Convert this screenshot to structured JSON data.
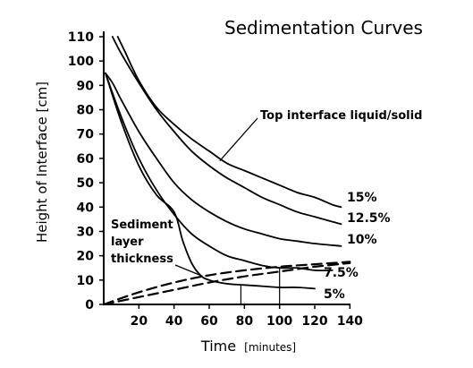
{
  "chart_data": {
    "type": "line",
    "title": "Sedimentation Curves",
    "xlabel": "Time",
    "xlabel_unit": "[minutes]",
    "ylabel": "Height of Interface [cm]",
    "xlim": [
      0,
      140
    ],
    "ylim": [
      0,
      110
    ],
    "x_ticks": [
      20,
      40,
      60,
      80,
      100,
      120,
      140
    ],
    "y_ticks": [
      0,
      10,
      20,
      30,
      40,
      50,
      60,
      70,
      80,
      90,
      100,
      110
    ],
    "grid": false,
    "legend": "none",
    "series": [
      {
        "name": "15%",
        "style": "solid",
        "x": [
          8,
          12,
          20,
          30,
          40,
          50,
          60,
          70,
          80,
          90,
          100,
          110,
          120,
          130,
          135
        ],
        "y": [
          110,
          104,
          92,
          81,
          74,
          68,
          63,
          58,
          55,
          52,
          49,
          46,
          44,
          41,
          40
        ]
      },
      {
        "name": "12.5%",
        "style": "solid",
        "x": [
          5,
          10,
          20,
          30,
          40,
          50,
          60,
          70,
          80,
          90,
          100,
          110,
          120,
          130,
          135
        ],
        "y": [
          110,
          103,
          91,
          80,
          71,
          63,
          57,
          52,
          48,
          44,
          41,
          38,
          36,
          34,
          33
        ]
      },
      {
        "name": "10%",
        "style": "solid",
        "x": [
          1,
          5,
          10,
          20,
          30,
          40,
          50,
          60,
          70,
          80,
          90,
          100,
          110,
          120,
          135
        ],
        "y": [
          95,
          91,
          84,
          71,
          60,
          50,
          43,
          38,
          34,
          31,
          29,
          27,
          26,
          25,
          24
        ]
      },
      {
        "name": "7.5%",
        "style": "solid",
        "x": [
          1,
          10,
          20,
          30,
          40,
          50,
          60,
          70,
          80,
          90,
          100,
          110,
          120,
          130
        ],
        "y": [
          95,
          77,
          60,
          47,
          37,
          29,
          24,
          20,
          18,
          16,
          15,
          15,
          14,
          14
        ]
      },
      {
        "name": "5%",
        "style": "solid",
        "x": [
          1,
          10,
          20,
          30,
          40,
          45,
          50,
          55,
          60,
          70,
          80,
          90,
          100,
          110,
          120
        ],
        "y": [
          95,
          75,
          57,
          45,
          38,
          26,
          17,
          12,
          10,
          8.5,
          8,
          7.5,
          7,
          7,
          6.5
        ]
      },
      {
        "name": "Sediment layer thickness (upper)",
        "style": "dashed",
        "x": [
          0,
          20,
          40,
          60,
          80,
          100,
          120,
          140
        ],
        "y": [
          0,
          5,
          9,
          12,
          14,
          15.5,
          16.5,
          17.5
        ]
      },
      {
        "name": "Sediment layer thickness (lower)",
        "style": "dashed",
        "x": [
          0,
          20,
          40,
          60,
          80,
          100,
          120,
          140
        ],
        "y": [
          0,
          3,
          6,
          9,
          11.5,
          13.5,
          15.5,
          17
        ]
      }
    ],
    "curve_labels": [
      "15%",
      "12.5%",
      "10%",
      "7.5%",
      "5%"
    ],
    "annotations": [
      {
        "text": "Top interface liquid/solid",
        "target_x": 66,
        "target_y": 59
      },
      {
        "text_lines": [
          "Sediment",
          "layer",
          "thickness"
        ],
        "target_x": 50,
        "target_y": 12
      }
    ],
    "vertical_markers": [
      {
        "x": 78,
        "y": 8
      },
      {
        "x": 100,
        "y": 15
      }
    ]
  }
}
